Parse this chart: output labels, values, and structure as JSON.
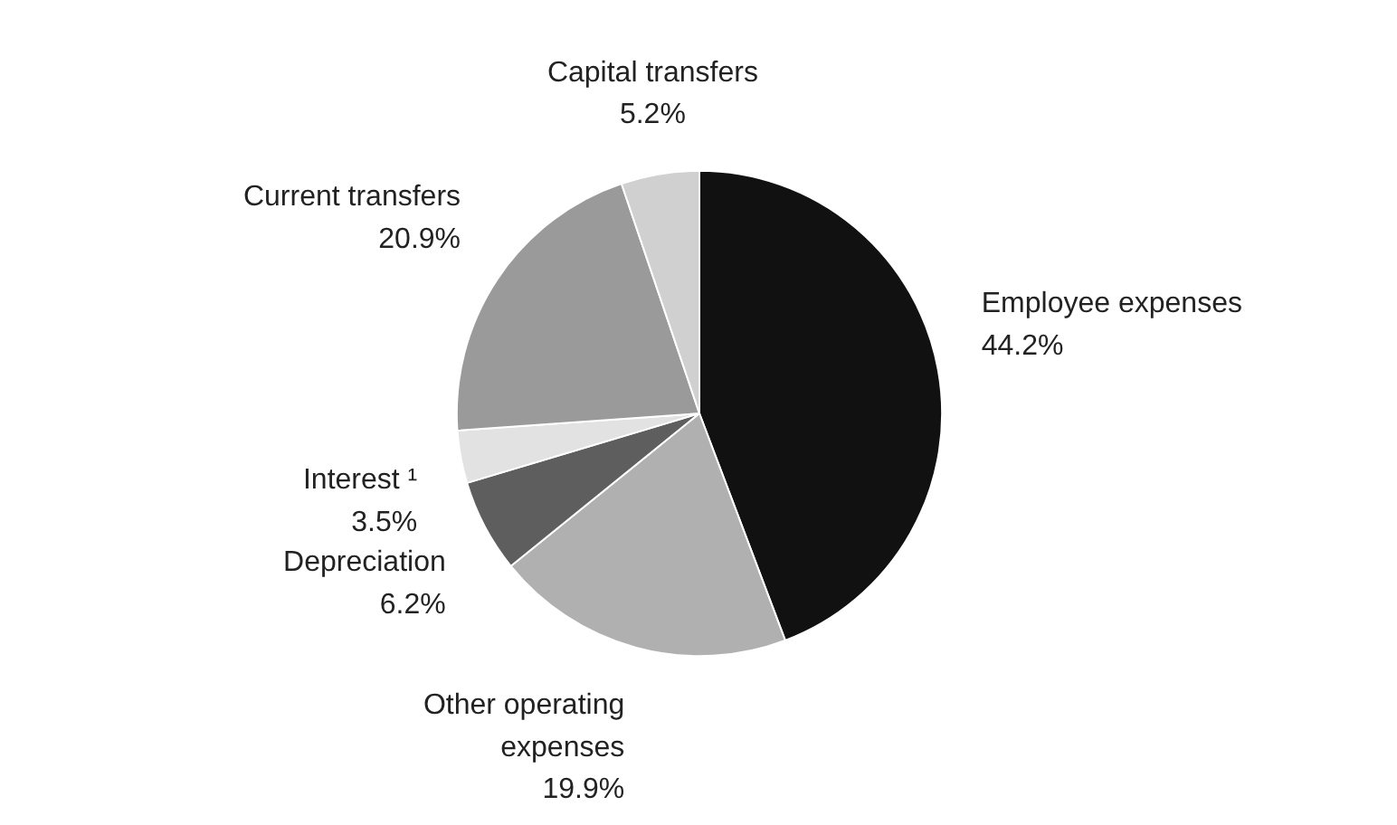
{
  "chart_data": {
    "type": "pie",
    "categories": [
      "Employee expenses",
      "Other operating expenses",
      "Depreciation",
      "Interest ¹",
      "Current transfers",
      "Capital transfers"
    ],
    "values": [
      44.2,
      19.9,
      6.2,
      3.5,
      20.9,
      5.2
    ],
    "value_labels": [
      "44.2%",
      "19.9%",
      "6.2%",
      "3.5%",
      "20.9%",
      "5.2%"
    ],
    "colors": [
      "#111111",
      "#b0b0b0",
      "#5e5e5e",
      "#e2e2e2",
      "#9a9a9a",
      "#d0d0d0"
    ],
    "legend": false
  }
}
